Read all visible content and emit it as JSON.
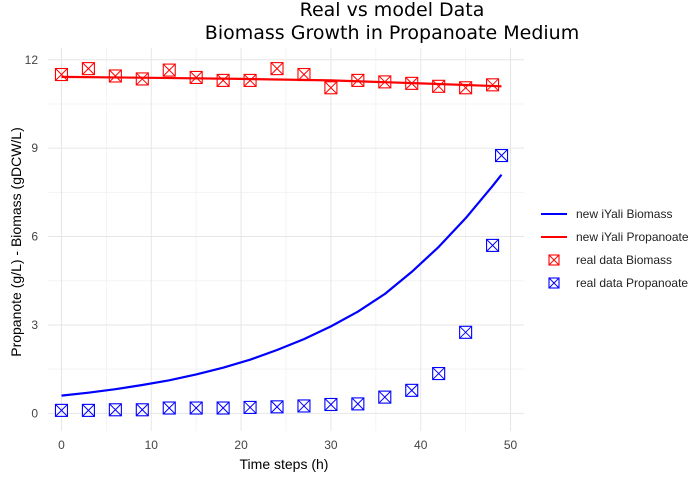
{
  "chart_data": {
    "type": "line",
    "title_line1": "Real vs model Data",
    "title_line2": "Biomass Growth in Propanoate Medium",
    "xlabel": "Time steps (h)",
    "ylabel": "Propanote (g/L) - Biomass (gDCW/L)",
    "xlim": [
      -1.5,
      51.5
    ],
    "ylim": [
      -0.6,
      12.4
    ],
    "x_ticks": [
      0,
      10,
      20,
      30,
      40,
      50
    ],
    "y_ticks": [
      0,
      3,
      6,
      9,
      12
    ],
    "x_tick_labels": [
      "0",
      "10",
      "20",
      "30",
      "40",
      "50"
    ],
    "y_tick_labels": [
      "0",
      "3",
      "6",
      "9",
      "12"
    ],
    "grid": true,
    "legend_position": "right",
    "lines": [
      {
        "name": "new iYali Biomass",
        "color": "#0000ff",
        "x": [
          0,
          3,
          6,
          9,
          12,
          15,
          18,
          21,
          24,
          27,
          30,
          33,
          36,
          39,
          42,
          45,
          48,
          49
        ],
        "y": [
          0.6,
          0.7,
          0.82,
          0.96,
          1.12,
          1.32,
          1.55,
          1.82,
          2.15,
          2.52,
          2.95,
          3.45,
          4.05,
          4.8,
          5.65,
          6.62,
          7.72,
          8.1
        ]
      },
      {
        "name": "new iYali Propanoate",
        "color": "#ff0000",
        "x": [
          0,
          10,
          20,
          30,
          40,
          49
        ],
        "y": [
          11.42,
          11.39,
          11.35,
          11.3,
          11.2,
          11.1
        ]
      }
    ],
    "points": [
      {
        "name": "real data Biomass",
        "color": "#ff0000",
        "x": [
          0,
          3,
          6,
          9,
          12,
          15,
          18,
          21,
          24,
          27,
          30,
          33,
          36,
          39,
          42,
          45,
          48
        ],
        "y": [
          11.5,
          11.7,
          11.45,
          11.35,
          11.65,
          11.4,
          11.3,
          11.3,
          11.7,
          11.5,
          11.05,
          11.3,
          11.25,
          11.2,
          11.1,
          11.05,
          11.15
        ]
      },
      {
        "name": "real data Propanoate",
        "color": "#0000ff",
        "x": [
          0,
          3,
          6,
          9,
          12,
          15,
          18,
          21,
          24,
          27,
          30,
          33,
          36,
          39,
          42,
          45,
          48,
          49
        ],
        "y": [
          0.1,
          0.1,
          0.12,
          0.12,
          0.18,
          0.18,
          0.18,
          0.2,
          0.22,
          0.25,
          0.3,
          0.32,
          0.55,
          0.78,
          1.35,
          2.75,
          5.7,
          8.75
        ]
      }
    ],
    "legend": [
      {
        "label": "new iYali Biomass",
        "kind": "line",
        "color": "#0000ff"
      },
      {
        "label": "new iYali Propanoate",
        "kind": "line",
        "color": "#ff0000"
      },
      {
        "label": "real data Biomass",
        "kind": "point",
        "color": "#ff0000"
      },
      {
        "label": "real data Propanoate",
        "kind": "point",
        "color": "#0000ff"
      }
    ]
  }
}
